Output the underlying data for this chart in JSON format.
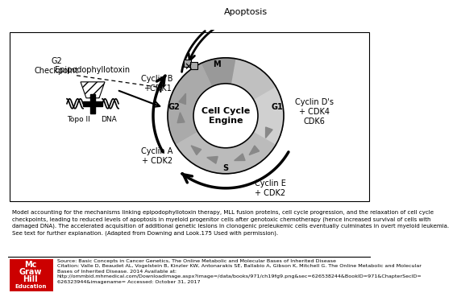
{
  "background_color": "#ffffff",
  "caption_text": "Model accounting for the mechanisms linking epipodophyllotoxin therapy, MLL fusion proteins, cell cycle progression, and the relaxation of cell cycle\ncheckpoints, leading to reduced levels of apoptosis in myeloid progenitor cells after genotoxic chemotherapy (hence increased survival of cells with\ndamaged DNA). The accelerated acquisition of additional genetic lesions in clonogenic preleukemic cells eventually culminates in overt myeloid leukemia.\nSee text for further explanation. (Adapted from Downing and Look.175 Used with permission).",
  "source_line1": "Source: Basic Concepts in Cancer Genetics, The Online Metabolic and Molecular Bases of Inherited Disease",
  "source_line2": "Citation: Valle D, Beaudet AL, Vogelstein B, Kinzler KW, Antonarakis SE, Ballabio A, Gibson K, Mitchell G. The Online Metabolic and Molecular",
  "source_line3": "Bases of Inherited Disease. 2014 Available at:",
  "source_line4": "http://ommbid.mhmedical.com/Downloadimage.aspx?image=/data/books/971/ch19fg9.png&sec=626538244&BookID=971&ChapterSecID=",
  "source_line5": "626323944&imagename= Accessed: October 31, 2017",
  "mcgraw_hill_color": "#cc0000",
  "diagram_bg": "#ffffff",
  "gray_dark": "#888888",
  "gray_light": "#bbbbbb",
  "gray_mid": "#999999"
}
